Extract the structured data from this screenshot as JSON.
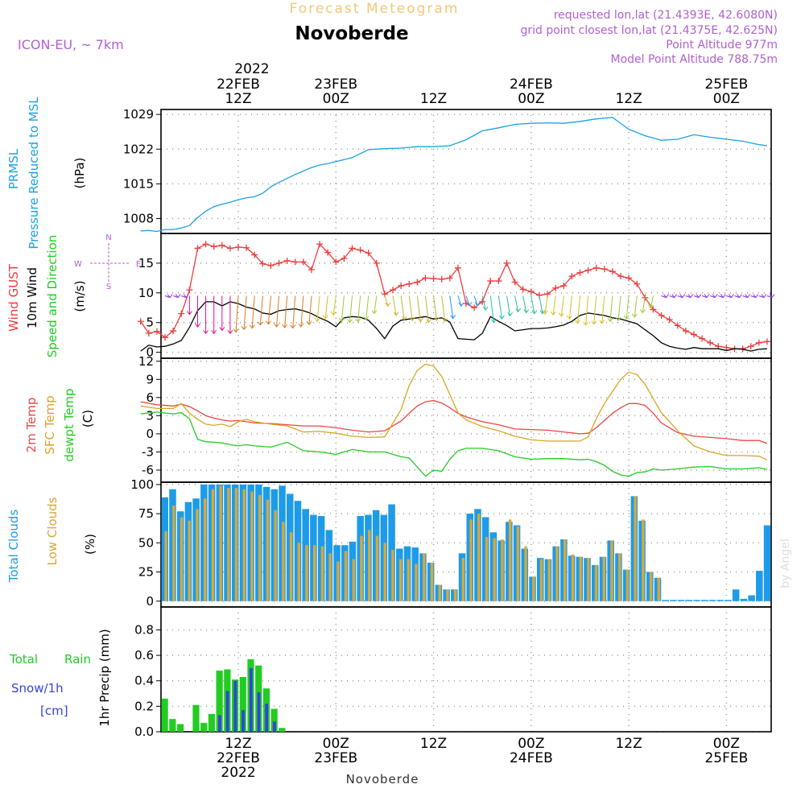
{
  "header": {
    "forecast_title": "Forecast Meteogram",
    "location": "Novoberde",
    "model": "ICON-EU, ~ 7km",
    "requested": "requested lon,lat (21.4393E, 42.6080N)",
    "grid_point": "grid point closest lon,lat (21.4375E, 42.625N)",
    "point_altitude": "Point Altitude 977m",
    "model_altitude": "Model Point Altitude 788.75m"
  },
  "time_axis": {
    "top_year": "2022",
    "labels": [
      {
        "hour": 12,
        "top": [
          "22FEB",
          "12Z"
        ],
        "bottom": [
          "12Z",
          "22FEB",
          "2022"
        ]
      },
      {
        "hour": 24,
        "top": [
          "23FEB",
          "00Z"
        ],
        "bottom": [
          "00Z",
          "23FEB"
        ]
      },
      {
        "hour": 36,
        "top": [
          "12Z"
        ],
        "bottom": [
          "12Z"
        ]
      },
      {
        "hour": 48,
        "top": [
          "24FEB",
          "00Z"
        ],
        "bottom": [
          "00Z",
          "24FEB"
        ]
      },
      {
        "hour": 60,
        "top": [
          "12Z"
        ],
        "bottom": [
          "12Z"
        ]
      },
      {
        "hour": 72,
        "top": [
          "25FEB",
          "00Z"
        ],
        "bottom": [
          "00Z",
          "25FEB"
        ]
      }
    ],
    "footer_location": "Novoberde",
    "watermark": "by Angel"
  },
  "colors": {
    "pressure": "#1ba1e2",
    "gust": "#ee3b3b",
    "wind": "#000000",
    "temp2m": "#ee4444",
    "sfc_temp": "#daa520",
    "dewpoint": "#22cc22",
    "total_clouds": "#1e9be8",
    "low_clouds": "#d7a83a",
    "rain": "#22cc22",
    "snow": "#3344dd",
    "label_purple": "#b060d0"
  },
  "chart_data": [
    {
      "type": "line",
      "panel": "pressure",
      "ylabels": [
        "PRMSL",
        "Pressure Reduced to MSL",
        "(hPa)"
      ],
      "yticks": [
        1008,
        1015,
        1022,
        1029
      ],
      "ylim": [
        1005,
        1030
      ],
      "x_hours": [
        0,
        1,
        2,
        3,
        4,
        5,
        6,
        7,
        8,
        9,
        10,
        11,
        12,
        13,
        14,
        15,
        16,
        17,
        18,
        19,
        20,
        21,
        22,
        23,
        24,
        26,
        28,
        30,
        32,
        34,
        36,
        38,
        40,
        42,
        44,
        46,
        48,
        50,
        52,
        54,
        56,
        58,
        60,
        62,
        64,
        66,
        68,
        70,
        72,
        74,
        76,
        77
      ],
      "series": [
        {
          "name": "PRMSL",
          "values": [
            1005.5,
            1005.6,
            1005.4,
            1005.8,
            1005.8,
            1006.1,
            1006.6,
            1008.2,
            1009.5,
            1010.4,
            1010.9,
            1011.3,
            1011.8,
            1012.2,
            1012.4,
            1013.1,
            1014.4,
            1015.3,
            1016.1,
            1016.9,
            1017.6,
            1018.3,
            1018.8,
            1019.1,
            1019.5,
            1020.3,
            1021.9,
            1022.1,
            1022.2,
            1022.5,
            1022.5,
            1022.7,
            1023.9,
            1025.7,
            1026.3,
            1027.0,
            1027.2,
            1027.3,
            1027.2,
            1027.6,
            1028.1,
            1028.4,
            1026.0,
            1024.7,
            1023.8,
            1024.0,
            1024.9,
            1024.4,
            1024.0,
            1023.6,
            1022.9,
            1022.7
          ]
        }
      ]
    },
    {
      "type": "line",
      "panel": "wind",
      "ylabels": [
        "Wind GUST",
        "10m Wind",
        "Speed and Direction",
        "(m/s)"
      ],
      "compass": [
        "N",
        "W",
        "E",
        "S"
      ],
      "yticks": [
        0,
        5,
        10,
        15
      ],
      "ylim": [
        -1,
        20
      ],
      "x_hours": [
        0,
        1,
        2,
        3,
        4,
        5,
        6,
        7,
        8,
        9,
        10,
        11,
        12,
        13,
        14,
        15,
        16,
        17,
        18,
        19,
        20,
        21,
        22,
        23,
        24,
        25,
        26,
        27,
        28,
        29,
        30,
        31,
        32,
        33,
        34,
        35,
        36,
        37,
        38,
        39,
        40,
        41,
        42,
        43,
        44,
        45,
        46,
        47,
        48,
        49,
        50,
        51,
        52,
        53,
        54,
        55,
        56,
        57,
        58,
        59,
        60,
        61,
        62,
        63,
        64,
        65,
        66,
        67,
        68,
        69,
        70,
        71,
        72,
        73,
        74,
        75,
        76,
        77
      ],
      "series": [
        {
          "name": "Wind GUST",
          "values": [
            5.2,
            3.2,
            3.5,
            2.5,
            3.6,
            6.5,
            10.5,
            17.5,
            18.2,
            17.8,
            18.0,
            17.5,
            17.7,
            17.6,
            16.4,
            14.9,
            14.6,
            15.0,
            15.4,
            15.2,
            15.2,
            13.9,
            18.2,
            16.8,
            15.2,
            15.8,
            17.5,
            17.2,
            16.7,
            15.0,
            9.8,
            10.5,
            11.2,
            11.5,
            11.8,
            12.5,
            12.4,
            12.3,
            12.5,
            14.2,
            8.2,
            7.5,
            8.5,
            12.0,
            12.0,
            15.0,
            11.8,
            10.6,
            10.2,
            9.6,
            9.8,
            10.8,
            11.2,
            12.8,
            13.4,
            13.8,
            14.2,
            14.0,
            13.6,
            12.8,
            12.5,
            11.5,
            9.2,
            7.2,
            6.2,
            5.5,
            4.5,
            3.6,
            3.0,
            2.3,
            1.6,
            1.0,
            0.8,
            0.6,
            0.6,
            1.0,
            1.6,
            1.8
          ]
        },
        {
          "name": "10m Wind",
          "values": [
            0.2,
            1.2,
            0.9,
            1.0,
            1.4,
            2.0,
            4.2,
            7.0,
            8.5,
            8.5,
            7.8,
            8.5,
            8.2,
            7.6,
            7.3,
            6.6,
            6.4,
            7.0,
            7.2,
            7.3,
            7.0,
            6.5,
            5.8,
            5.2,
            4.3,
            5.8,
            6.0,
            5.9,
            5.4,
            4.0,
            2.3,
            4.4,
            5.4,
            5.6,
            5.8,
            6.0,
            5.6,
            5.8,
            5.1,
            2.3,
            2.2,
            2.1,
            3.2,
            6.0,
            5.2,
            4.5,
            3.6,
            3.8,
            4.0,
            4.0,
            4.1,
            4.3,
            4.6,
            5.2,
            6.2,
            6.6,
            6.4,
            6.2,
            5.8,
            5.6,
            5.2,
            4.8,
            3.8,
            2.8,
            1.6,
            1.0,
            0.7,
            0.5,
            0.8,
            0.6,
            0.6,
            0.6,
            0.3,
            0.6,
            0.5,
            0.2,
            0.5,
            0.6
          ]
        }
      ]
    },
    {
      "type": "line",
      "panel": "temperature",
      "ylabels": [
        "2m Temp",
        "SFC Temp",
        "dewpt Temp",
        "(C)"
      ],
      "yticks": [
        -6,
        -3,
        0,
        3,
        6,
        9,
        12
      ],
      "ylim": [
        -8,
        12.5
      ],
      "x_hours": [
        0,
        2,
        4,
        5,
        6,
        7,
        8,
        9,
        10,
        11,
        12,
        13,
        14,
        16,
        18,
        20,
        22,
        24,
        26,
        28,
        30,
        32,
        33,
        34,
        35,
        36,
        37,
        38,
        39,
        40,
        42,
        44,
        46,
        48,
        50,
        52,
        54,
        55,
        56,
        57,
        58,
        59,
        60,
        61,
        62,
        63,
        64,
        66,
        68,
        70,
        72,
        74,
        76,
        77
      ],
      "series": [
        {
          "name": "2m Temp",
          "values": [
            5.3,
            4.8,
            4.6,
            4.9,
            4.5,
            3.8,
            3.0,
            2.6,
            2.3,
            2.1,
            2.2,
            2.0,
            1.8,
            1.7,
            1.5,
            1.3,
            1.3,
            1.0,
            0.6,
            0.3,
            0.5,
            2.1,
            3.4,
            4.6,
            5.3,
            5.5,
            5.1,
            4.3,
            3.4,
            2.8,
            2.0,
            1.5,
            0.8,
            0.7,
            0.6,
            0.3,
            0.0,
            0.1,
            1.0,
            2.2,
            3.4,
            4.3,
            5.0,
            5.0,
            4.7,
            3.4,
            1.8,
            0.2,
            -0.4,
            -0.6,
            -0.8,
            -1.1,
            -1.1,
            -1.6
          ]
        },
        {
          "name": "SFC Temp",
          "values": [
            4.6,
            4.2,
            4.2,
            5.0,
            3.4,
            2.4,
            1.6,
            1.4,
            1.6,
            1.2,
            2.0,
            2.4,
            2.0,
            1.6,
            1.3,
            0.3,
            0.4,
            0.1,
            -0.4,
            -0.6,
            -0.5,
            4.0,
            8.0,
            10.5,
            11.5,
            11.2,
            9.5,
            6.5,
            3.5,
            2.3,
            1.2,
            0.5,
            -0.4,
            -1.0,
            -1.2,
            -1.2,
            -1.2,
            -0.5,
            2.5,
            5.0,
            7.0,
            9.0,
            10.2,
            9.8,
            8.2,
            5.8,
            3.5,
            0.5,
            -2.0,
            -3.0,
            -3.6,
            -3.6,
            -3.7,
            -4.3
          ]
        },
        {
          "name": "dewpt Temp",
          "values": [
            3.3,
            3.6,
            3.3,
            3.5,
            2.5,
            -0.9,
            -1.3,
            -1.4,
            -1.5,
            -1.8,
            -2.0,
            -1.8,
            -2.0,
            -2.2,
            -1.4,
            -2.8,
            -3.0,
            -3.4,
            -2.6,
            -3.0,
            -3.0,
            -3.8,
            -4.0,
            -5.5,
            -7.0,
            -6.0,
            -6.2,
            -4.2,
            -2.8,
            -2.4,
            -2.4,
            -2.8,
            -3.8,
            -4.2,
            -4.1,
            -4.1,
            -4.3,
            -4.2,
            -4.6,
            -5.2,
            -6.2,
            -6.8,
            -7.0,
            -6.4,
            -6.3,
            -5.8,
            -6.0,
            -5.8,
            -5.5,
            -5.4,
            -5.8,
            -5.8,
            -5.6,
            -5.9
          ]
        }
      ]
    },
    {
      "type": "bar",
      "panel": "clouds",
      "ylabels": [
        "Total Clouds",
        "Low Clouds",
        "(%)"
      ],
      "yticks": [
        0,
        25,
        50,
        75,
        100
      ],
      "ylim": [
        -5,
        102
      ],
      "x_hours": [
        0,
        1,
        2,
        3,
        4,
        5,
        6,
        7,
        8,
        9,
        10,
        11,
        12,
        13,
        14,
        15,
        16,
        17,
        18,
        19,
        20,
        21,
        22,
        23,
        24,
        25,
        26,
        27,
        28,
        29,
        30,
        31,
        32,
        33,
        34,
        35,
        36,
        37,
        38,
        39,
        40,
        41,
        42,
        43,
        44,
        45,
        46,
        47,
        48,
        49,
        50,
        51,
        52,
        53,
        54,
        55,
        56,
        57,
        58,
        59,
        60,
        61,
        62,
        63,
        64,
        65,
        66,
        67,
        68,
        69,
        70,
        71,
        72,
        73,
        74,
        75,
        76,
        77
      ],
      "series": [
        {
          "name": "Total Clouds",
          "values": [
            89,
            96,
            77,
            85,
            88,
            100,
            100,
            100,
            100,
            100,
            100,
            100,
            100,
            98,
            96,
            99,
            92,
            86,
            79,
            74,
            73,
            61,
            48,
            48,
            51,
            73,
            74,
            78,
            74,
            83,
            45,
            47,
            46,
            41,
            33,
            14,
            10,
            10,
            41,
            75,
            79,
            72,
            59,
            52,
            68,
            65,
            45,
            21,
            37,
            36,
            47,
            53,
            39,
            38,
            37,
            31,
            38,
            52,
            41,
            27,
            90,
            69,
            25,
            20,
            0,
            0,
            0,
            0,
            0,
            0,
            0,
            0,
            0,
            10,
            2,
            5,
            26,
            65
          ]
        },
        {
          "name": "Low Clouds",
          "values": [
            60,
            82,
            72,
            69,
            79,
            88,
            96,
            99,
            97,
            97,
            96,
            94,
            91,
            87,
            78,
            68,
            59,
            50,
            48,
            48,
            47,
            41,
            34,
            43,
            36,
            56,
            61,
            56,
            50,
            44,
            36,
            36,
            32,
            41,
            33,
            14,
            10,
            10,
            37,
            70,
            75,
            55,
            54,
            53,
            70,
            64,
            47,
            21,
            36,
            36,
            47,
            53,
            40,
            38,
            37,
            31,
            38,
            52,
            41,
            27,
            90,
            70,
            25,
            20,
            0,
            0,
            0,
            0,
            0,
            0,
            0,
            0,
            0,
            0,
            0,
            0,
            0,
            0
          ]
        }
      ]
    },
    {
      "type": "bar",
      "panel": "precip",
      "ylabels": [
        "1hr Precip (mm)"
      ],
      "legend": [
        "Total",
        "Rain",
        "Snow/1h",
        "[cm]"
      ],
      "yticks": [
        0,
        0.2,
        0.4,
        0.6,
        0.8
      ],
      "ylim": [
        0,
        0.98
      ],
      "x_hours": [
        0,
        1,
        2,
        3,
        4,
        5,
        6,
        7,
        8,
        9,
        10,
        11,
        12,
        13,
        14,
        15
      ],
      "series": [
        {
          "name": "Total Rain",
          "values": [
            0.26,
            0.1,
            0.06,
            0.0,
            0.21,
            0.07,
            0.14,
            0.48,
            0.49,
            0.41,
            0.43,
            0.57,
            0.52,
            0.34,
            0.18,
            0.03
          ]
        },
        {
          "name": "Snow",
          "values": [
            0,
            0,
            0,
            0,
            0,
            0,
            0,
            0.13,
            0.32,
            0.4,
            0.17,
            0.5,
            0.31,
            0.22,
            0.08,
            0
          ]
        }
      ]
    }
  ]
}
